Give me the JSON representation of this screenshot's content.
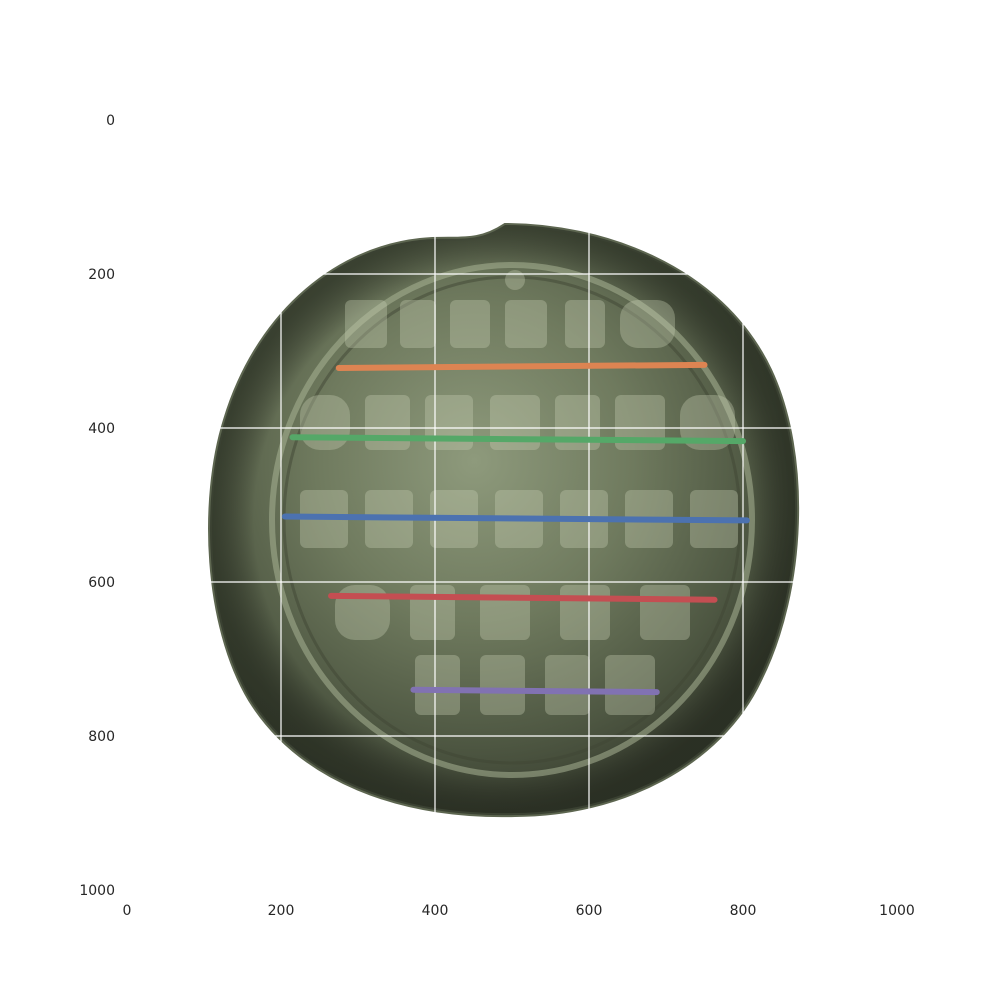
{
  "chart_data": {
    "type": "line",
    "title": "",
    "xlabel": "",
    "ylabel": "",
    "xlim": [
      0,
      1000
    ],
    "ylim": [
      1000,
      0
    ],
    "y_inverted": true,
    "grid": true,
    "x_ticks": [
      0,
      200,
      400,
      600,
      800,
      1000
    ],
    "y_ticks": [
      0,
      200,
      400,
      600,
      800,
      1000
    ],
    "x_tick_labels": [
      "0",
      "200",
      "400",
      "600",
      "800",
      "1000"
    ],
    "y_tick_labels": [
      "0",
      "200",
      "400",
      "600",
      "800",
      "1000"
    ],
    "background_image": "lead seal with inscribed text lines",
    "series": [
      {
        "color": "#dd8452",
        "x": [
          275,
          750
        ],
        "y": [
          322,
          318
        ]
      },
      {
        "color": "#55a868",
        "x": [
          215,
          800
        ],
        "y": [
          412,
          417
        ]
      },
      {
        "color": "#4c72b0",
        "x": [
          205,
          805
        ],
        "y": [
          515,
          520
        ]
      },
      {
        "color": "#c44e52",
        "x": [
          265,
          763
        ],
        "y": [
          618,
          623
        ]
      },
      {
        "color": "#8172b2",
        "x": [
          372,
          688
        ],
        "y": [
          740,
          743
        ]
      }
    ]
  }
}
